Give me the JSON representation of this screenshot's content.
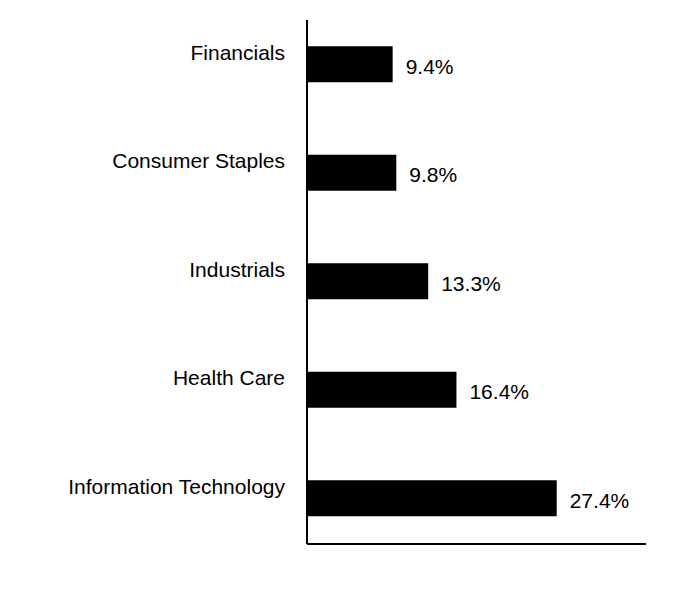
{
  "chart_data": {
    "type": "bar",
    "orientation": "horizontal",
    "categories": [
      "Financials",
      "Consumer Staples",
      "Industrials",
      "Health Care",
      "Information Technology"
    ],
    "values": [
      9.4,
      9.8,
      13.3,
      16.4,
      27.4
    ],
    "value_labels": [
      "9.4%",
      "9.8%",
      "13.3%",
      "16.4%",
      "27.4%"
    ],
    "color": "#000000",
    "xlim": [
      0,
      37.2
    ],
    "data_labels": true,
    "tick_labels": false,
    "grid": false
  }
}
